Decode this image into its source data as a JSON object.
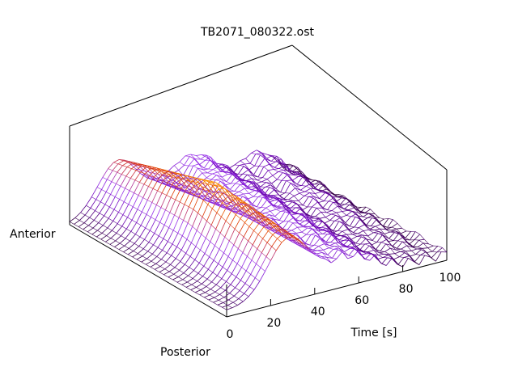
{
  "chart_data": {
    "type": "surface",
    "title": "TB2071_080322.ost",
    "xlabel": "Time [s]",
    "y_labels": {
      "near": "Posterior",
      "far": "Anterior"
    },
    "x_ticks": [
      0,
      20,
      40,
      60,
      80,
      100
    ],
    "xlim": [
      0,
      100
    ],
    "grid": false,
    "colormap": [
      "#2a0030",
      "#6a00b0",
      "#9933ee",
      "#dd3300",
      "#ff9900",
      "#ffee00"
    ],
    "surface": {
      "description_free": true,
      "time_values": [
        0,
        5,
        10,
        15,
        20,
        25,
        30,
        35,
        40,
        45,
        50,
        55,
        60,
        65,
        70,
        75,
        80,
        85,
        90,
        95,
        100
      ],
      "position_count": 36,
      "main_ridge_time": 22,
      "secondary_ridge_time": 55
    }
  }
}
